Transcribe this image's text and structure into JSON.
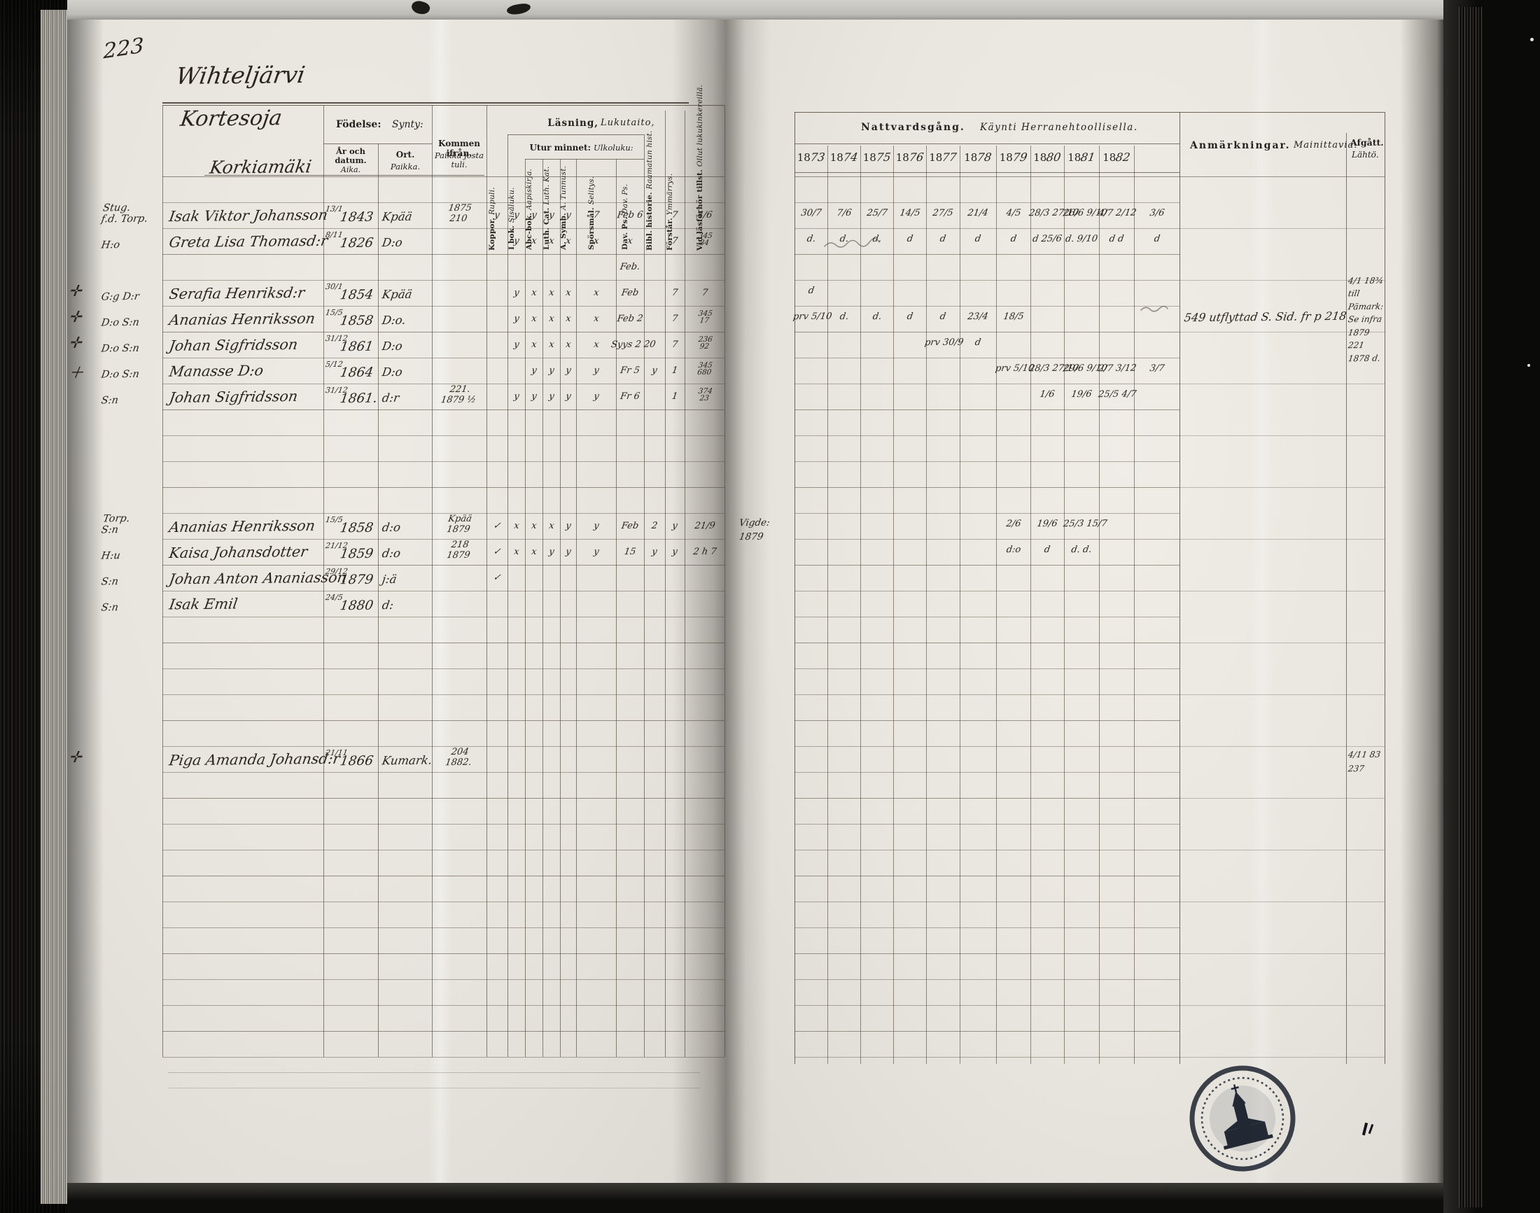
{
  "document": {
    "page_number": "223",
    "village": "Wihteljärvi",
    "farm": "Kortesoja"
  },
  "left_page": {
    "header": {
      "birth_sv": "Födelse:",
      "birth_fi": "Synty:",
      "birth_date_sv": "År och datum.",
      "birth_date_fi": "Aika.",
      "birth_place_sv": "Ort.",
      "birth_place_fi": "Paikka.",
      "from_sv": "Kommen ifrån.",
      "from_fi": "Paikka josta tuli.",
      "reading_sv": "Läsning,",
      "reading_fi": "Lukutaito,",
      "memory_sv": "Utur minnet:",
      "memory_fi": "Ulkoluku:",
      "narrow_cols": [
        {
          "sv": "Koppor.",
          "fi": "Rupuli."
        },
        {
          "sv": "I bok.",
          "fi": "Sisäluku."
        },
        {
          "sv": "Abc-bok.",
          "fi": "Aapiskirja."
        },
        {
          "sv": "Luth. Cat.",
          "fi": "Luth. Kat."
        },
        {
          "sv": "A. Symb.",
          "fi": "A. Tunnust."
        },
        {
          "sv": "Spörsmål.",
          "fi": "Selitys."
        },
        {
          "sv": "Dav. Ps.",
          "fi": "Dav. Ps."
        },
        {
          "sv": "Bibl. historie.",
          "fi": "Raamatun hist."
        },
        {
          "sv": "Förstår.",
          "fi": "Ymmärrys."
        },
        {
          "sv": "Vid läsförhör tillst.",
          "fi": "Ollut lukukinkereillä."
        }
      ]
    },
    "rows": [
      {
        "i": 0,
        "type": "farm",
        "name": "Korkiamäki"
      },
      {
        "i": 1,
        "glyph": "",
        "margin": [
          "Stug.",
          "f.d. Torp."
        ],
        "name": "Isak Viktor Johansson",
        "dm": "13/1",
        "yr": "1843",
        "ort": "Kpää",
        "from": [
          "1875",
          "210"
        ],
        "reading": [
          "y",
          "y",
          "y",
          "y",
          "y",
          "7",
          "Feb 6",
          "",
          "7",
          "4/6"
        ]
      },
      {
        "i": 2,
        "glyph": "",
        "margin": [
          "",
          "H:o"
        ],
        "name": "Greta Lisa Thomasd:r",
        "dm": "8/11",
        "yr": "1826",
        "ort": "D:o",
        "from": [],
        "reading": [
          "",
          "y",
          "x",
          "x",
          "x",
          "x",
          "x",
          "",
          "7",
          "345/34"
        ]
      },
      {
        "i": 3,
        "glyph": "",
        "margin": [
          "",
          ""
        ],
        "name": "",
        "dm": "",
        "yr": "",
        "ort": "",
        "from": [],
        "reading": [
          "",
          "",
          "",
          "",
          "",
          "",
          "Feb.",
          "",
          "",
          ""
        ]
      },
      {
        "i": 4,
        "glyph": "✛",
        "margin": [
          "",
          "G:g D:r"
        ],
        "name": "Serafia Henriksd:r",
        "dm": "30/1",
        "yr": "1854",
        "ort": "Kpää",
        "from": [],
        "reading": [
          "",
          "y",
          "x",
          "x",
          "x",
          "x",
          "Feb",
          "",
          "7",
          "7"
        ]
      },
      {
        "i": 5,
        "glyph": "✛",
        "margin": [
          "",
          "D:o S:n"
        ],
        "name": "Ananias Henriksson",
        "dm": "15/5",
        "yr": "1858",
        "ort": "D:o.",
        "from": [],
        "reading": [
          "",
          "y",
          "x",
          "x",
          "x",
          "x",
          "Feb 2",
          "",
          "7",
          "345/17"
        ]
      },
      {
        "i": 6,
        "glyph": "✛",
        "margin": [
          "",
          "D:o S:n"
        ],
        "name": "Johan Sigfridsson",
        "dm": "31/12",
        "yr": "1861",
        "ort": "D:o",
        "from": [],
        "reading": [
          "",
          "y",
          "x",
          "x",
          "x",
          "x",
          "Syys 2 20",
          "",
          "7",
          "236/92"
        ]
      },
      {
        "i": 7,
        "glyph": "＋",
        "margin": [
          "",
          "D:o S:n"
        ],
        "name": "Manasse   D:o",
        "dm": "5/12",
        "yr": "1864",
        "ort": "D:o",
        "from": [],
        "reading": [
          "",
          "",
          "y",
          "y",
          "y",
          "y",
          "Fr 5",
          "y",
          "1",
          "345/680"
        ]
      },
      {
        "i": 8,
        "glyph": "",
        "margin": [
          "",
          "S:n"
        ],
        "name": "Johan Sigfridsson",
        "dm": "31/12",
        "yr": "1861.",
        "ort": "d:r",
        "from": [
          "221.",
          "1879 ½"
        ],
        "reading": [
          "",
          "y",
          "y",
          "y",
          "y",
          "y",
          "Fr 6",
          "",
          "1",
          "374/23"
        ]
      },
      {
        "i": 13,
        "glyph": "",
        "margin": [
          "Torp.",
          "S:n"
        ],
        "name": "Ananias Henriksson",
        "dm": "15/5",
        "yr": "1858",
        "ort": "d:o",
        "from": [
          "Kpää",
          "1879"
        ],
        "reading": [
          "✓",
          "x",
          "x",
          "x",
          "y",
          "y",
          "Feb",
          "2",
          "y",
          "21/9"
        ]
      },
      {
        "i": 14,
        "glyph": "",
        "margin": [
          "",
          "H:u"
        ],
        "name": "Kaisa Johansdotter",
        "dm": "21/12",
        "yr": "1859",
        "ort": "d:o",
        "from": [
          "218",
          "1879"
        ],
        "reading": [
          "✓",
          "x",
          "x",
          "y",
          "y",
          "y",
          "15",
          "y",
          "y",
          "2 h 7"
        ]
      },
      {
        "i": 15,
        "glyph": "",
        "margin": [
          "",
          "S:n"
        ],
        "name": "Johan Anton Ananiasson",
        "dm": "29/12",
        "yr": "1879",
        "ort": "j:ä",
        "from": [],
        "reading": [
          "✓",
          "",
          "",
          "",
          "",
          "",
          "",
          "",
          "",
          ""
        ]
      },
      {
        "i": 16,
        "glyph": "",
        "margin": [
          "",
          "S:n"
        ],
        "name": "Isak Emil",
        "dm": "24/5",
        "yr": "1880",
        "ort": "d:",
        "from": [],
        "reading": [
          "",
          "",
          "",
          "",
          "",
          "",
          "",
          "",
          "",
          ""
        ]
      },
      {
        "i": 22,
        "glyph": "✛",
        "margin": [
          "",
          ""
        ],
        "name": "Piga Amanda Johansd:r",
        "dm": "21/11",
        "yr": "1866",
        "ort": "Kumark.",
        "from": [
          "204",
          "1882."
        ],
        "reading": [
          "",
          "",
          "",
          "",
          "",
          "",
          "",
          "",
          "",
          ""
        ]
      }
    ]
  },
  "right_page": {
    "header_sv": "Nattvardsgång.",
    "header_fi": "Käynti Herranehtoollisella.",
    "years": [
      "1873",
      "1874",
      "1875",
      "1876",
      "1877",
      "1878",
      "1879",
      "1880",
      "1881",
      "1882"
    ],
    "remarks_sv": "Anmärkningar.",
    "remarks_fi": "Mainittavia.",
    "departed_sv": "Afgått.",
    "departed_fi": "Lähtö.",
    "left_note": {
      "i": 13,
      "lines": [
        "Vigde:",
        "1879"
      ]
    },
    "rows": [
      {
        "i": 1,
        "marks": [
          "30/7",
          "7/6",
          "25/7",
          "14/5",
          "27/5",
          "21/4",
          "4/5",
          "28/3 27/10",
          "26/6 9/10",
          "4/7 2/12",
          "3/6"
        ]
      },
      {
        "i": 2,
        "marks": [
          "d.",
          "d.",
          "d.",
          "d",
          "d",
          "d",
          "d",
          "d 25/6",
          "d. 9/10",
          "d  d",
          "d"
        ]
      },
      {
        "i": 4,
        "marks": [
          "d",
          "",
          "",
          "",
          "",
          "",
          "",
          "",
          "",
          "",
          ""
        ]
      },
      {
        "i": 5,
        "marks": [
          "prv 5/10",
          "d.",
          "d.",
          "d",
          "d",
          "23/4",
          "18/5",
          "",
          "",
          "",
          ""
        ]
      },
      {
        "i": 6,
        "marks": [
          "",
          "",
          "",
          "",
          "prv 30/9",
          "d",
          "",
          "",
          "",
          "",
          ""
        ]
      },
      {
        "i": 7,
        "marks": [
          "",
          "",
          "",
          "",
          "",
          "",
          "prv 5/10",
          "28/3 27/10",
          "29/6 9/10",
          "2/7 3/12",
          "3/7"
        ]
      },
      {
        "i": 8,
        "marks": [
          "",
          "",
          "",
          "",
          "",
          "",
          "",
          "1/6",
          "19/6",
          "25/5 4/7",
          ""
        ]
      },
      {
        "i": 13,
        "marks": [
          "",
          "",
          "",
          "",
          "",
          "",
          "2/6",
          "19/6",
          "25/3 15/7",
          "",
          ""
        ]
      },
      {
        "i": 14,
        "marks": [
          "",
          "",
          "",
          "",
          "",
          "",
          "d:o",
          "d",
          "d. d.",
          "",
          ""
        ]
      }
    ],
    "remark_entries": [
      {
        "i": 5,
        "text": "549 utflyttad S. Sid. fr p 218"
      }
    ],
    "departed_entries": [
      {
        "i": 3.7,
        "text": "4/1 18¾"
      },
      {
        "i": 4.2,
        "text": "till"
      },
      {
        "i": 4.7,
        "text": "Pämark:"
      },
      {
        "i": 5.2,
        "text": "Se infra"
      },
      {
        "i": 5.7,
        "text": "1879"
      },
      {
        "i": 6.2,
        "text": "221"
      },
      {
        "i": 6.7,
        "text": "1878 d."
      },
      {
        "i": 22,
        "text": "4/11 83"
      },
      {
        "i": 22.55,
        "text": "237"
      }
    ]
  }
}
